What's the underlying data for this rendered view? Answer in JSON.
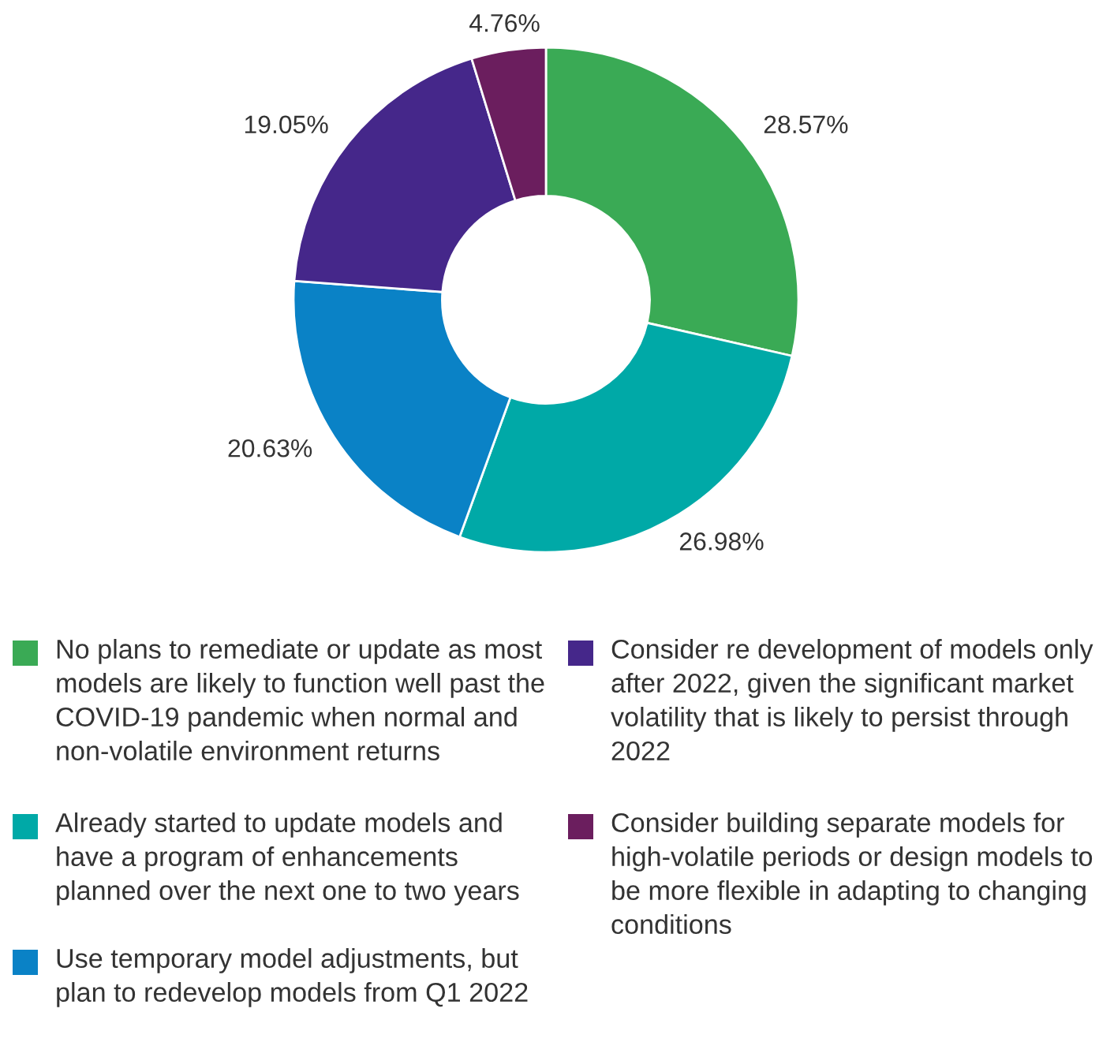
{
  "chart_data": {
    "type": "donut",
    "categories": [
      "No plans to remediate or update as most models are likely to function well past the COVID-19 pandemic when normal and non-volatile environment returns",
      "Already started to update models and have a program of enhancements planned over the next one to two years",
      "Use temporary model adjustments, but plan to redevelop models from Q1 2022",
      "Consider re development of models only after 2022, given the significant market volatility that is likely to persist through 2022",
      "Consider building separate models for high-volatile periods or design models to be more flexible in adapting to changing conditions"
    ],
    "values": [
      28.57,
      26.98,
      20.63,
      19.05,
      4.76
    ],
    "colors": [
      "#3aaa55",
      "#00a9a7",
      "#0a82c6",
      "#45278a",
      "#6b1e5e"
    ],
    "value_labels": [
      "28.57%",
      "26.98%",
      "20.63%",
      "19.05%",
      "4.76%"
    ],
    "legend": "bottom"
  }
}
